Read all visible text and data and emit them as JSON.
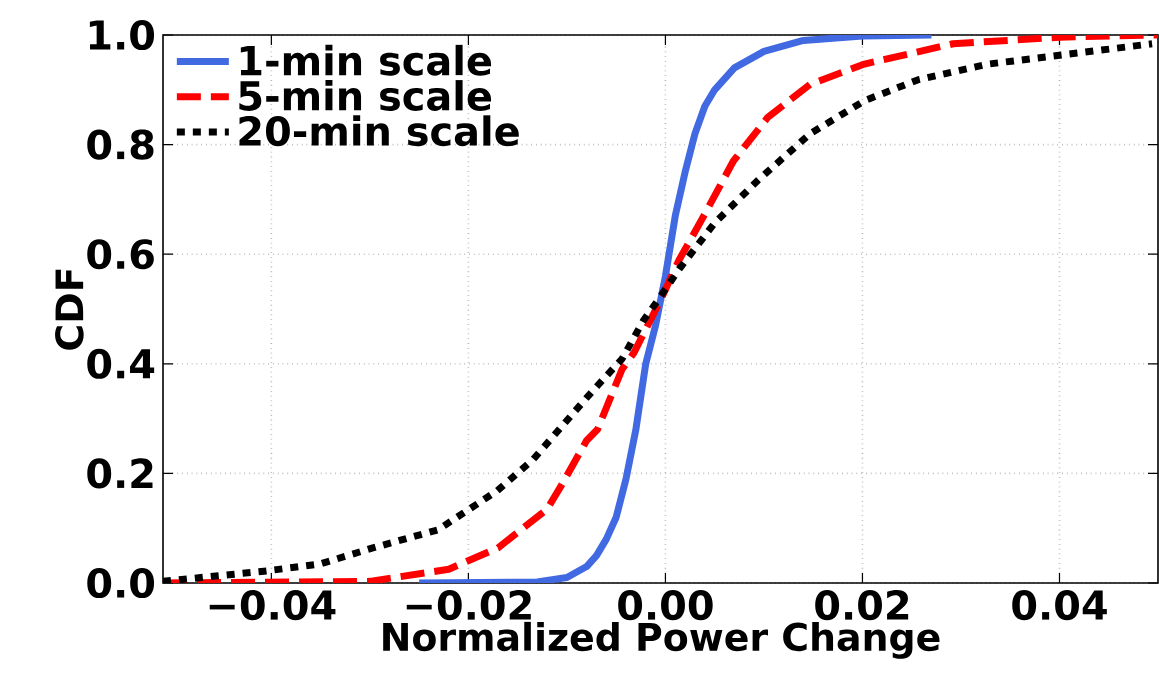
{
  "chart_data": {
    "type": "line",
    "xlabel": "Normalized Power Change",
    "ylabel": "CDF",
    "xlim": [
      -0.051,
      0.05
    ],
    "ylim": [
      0,
      1
    ],
    "xticks": [
      {
        "value": -0.04,
        "label": "−0.04"
      },
      {
        "value": -0.02,
        "label": "−0.02"
      },
      {
        "value": 0,
        "label": "0.00"
      },
      {
        "value": 0.02,
        "label": "0.02"
      },
      {
        "value": 0.04,
        "label": "0.04"
      }
    ],
    "yticks": [
      {
        "value": 0,
        "label": "0.0"
      },
      {
        "value": 0.2,
        "label": "0.2"
      },
      {
        "value": 0.4,
        "label": "0.4"
      },
      {
        "value": 0.6,
        "label": "0.6"
      },
      {
        "value": 0.8,
        "label": "0.8"
      },
      {
        "value": 1,
        "label": "1.0"
      }
    ],
    "grid": true,
    "legend": "top left",
    "marker": "none",
    "series": [
      {
        "name": "1-min scale",
        "color": "#4169e1",
        "line_style": "solid",
        "x": [
          -0.025,
          -0.013,
          -0.01,
          -0.008,
          -0.007,
          -0.006,
          -0.005,
          -0.004,
          -0.003,
          -0.002,
          -0.001,
          0.0,
          0.001,
          0.002,
          0.003,
          0.004,
          0.005,
          0.007,
          0.01,
          0.014,
          0.02,
          0.027
        ],
        "values": [
          0,
          0.002,
          0.01,
          0.03,
          0.05,
          0.08,
          0.12,
          0.19,
          0.28,
          0.4,
          0.47,
          0.56,
          0.67,
          0.75,
          0.82,
          0.87,
          0.9,
          0.94,
          0.97,
          0.99,
          0.998,
          1.0
        ]
      },
      {
        "name": "5-min scale",
        "color": "#ff0000",
        "line_style": "dashed",
        "x": [
          -0.051,
          -0.03,
          -0.022,
          -0.017,
          -0.012,
          -0.0105,
          -0.008,
          -0.0069,
          -0.0044,
          -0.0032,
          -0.0004,
          0.0014,
          0.0039,
          0.0069,
          0.0104,
          0.0147,
          0.0202,
          0.0292,
          0.04,
          0.05
        ],
        "values": [
          0,
          0.003,
          0.025,
          0.064,
          0.135,
          0.18,
          0.26,
          0.28,
          0.39,
          0.42,
          0.52,
          0.59,
          0.67,
          0.77,
          0.85,
          0.91,
          0.947,
          0.984,
          0.996,
          1.0
        ]
      },
      {
        "name": "20-min scale",
        "color": "#000000",
        "line_style": "dotted",
        "x": [
          -0.051,
          -0.0405,
          -0.035,
          -0.0297,
          -0.0231,
          -0.0171,
          -0.0134,
          -0.008,
          -0.0069,
          -0.0044,
          -0.0022,
          -0.0008,
          0.0014,
          0.005,
          0.0094,
          0.0147,
          0.0202,
          0.0256,
          0.0328,
          0.0418,
          0.0494
        ],
        "values": [
          0.003,
          0.022,
          0.035,
          0.064,
          0.097,
          0.168,
          0.226,
          0.338,
          0.36,
          0.409,
          0.48,
          0.515,
          0.573,
          0.657,
          0.735,
          0.82,
          0.88,
          0.918,
          0.947,
          0.967,
          0.984
        ]
      }
    ]
  }
}
